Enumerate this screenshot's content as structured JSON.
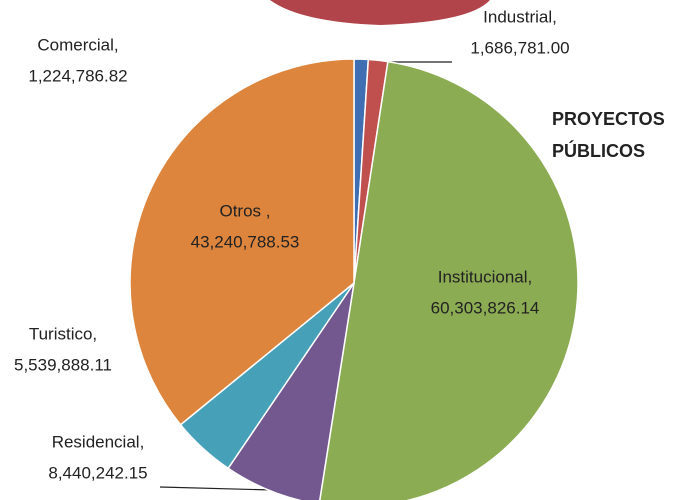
{
  "chart_data": {
    "type": "pie",
    "title": "PROYECTOS PÚBLICOS",
    "categories": [
      "Comercial,",
      "Industrial,",
      "Institucional,",
      "Residencial,",
      "Turistico,",
      "Otros ,"
    ],
    "values": [
      1224786.82,
      1686781.0,
      60303826.14,
      8440242.15,
      5539888.11,
      43240788.53
    ],
    "value_labels": [
      "1,224,786.82",
      "1,686,781.00",
      "60,303,826.14",
      "8,440,242.15",
      "5,539,888.11",
      "43,240,788.53"
    ],
    "colors": [
      "#3f6fb2",
      "#c0504d",
      "#8cac53",
      "#73578f",
      "#45a0b8",
      "#dd853d"
    ]
  }
}
